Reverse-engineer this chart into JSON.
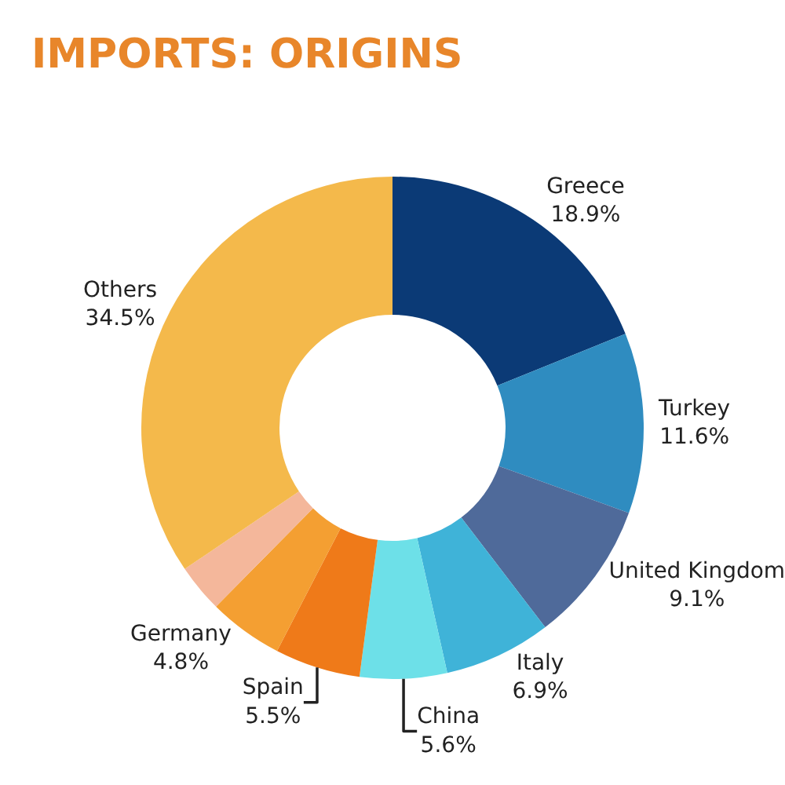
{
  "chart_data": {
    "type": "donut",
    "title": "IMPORTS: ORIGINS",
    "categories": [
      "Greece",
      "Turkey",
      "United Kingdom",
      "Italy",
      "China",
      "Spain",
      "Germany",
      null,
      "Others"
    ],
    "values": [
      18.9,
      11.6,
      9.1,
      6.9,
      5.6,
      5.5,
      4.8,
      3.1,
      34.5
    ],
    "value_labels": [
      "18.9%",
      "11.6%",
      "9.1%",
      "6.9%",
      "5.6%",
      "5.5%",
      "4.8%",
      null,
      "34.5%"
    ],
    "colors": [
      "#0b3a76",
      "#2f8cc0",
      "#4f6a9a",
      "#3fb3d8",
      "#6de0e8",
      "#ef7a19",
      "#f49f32",
      "#f4b79b",
      "#f4b94b"
    ],
    "legend": false
  }
}
